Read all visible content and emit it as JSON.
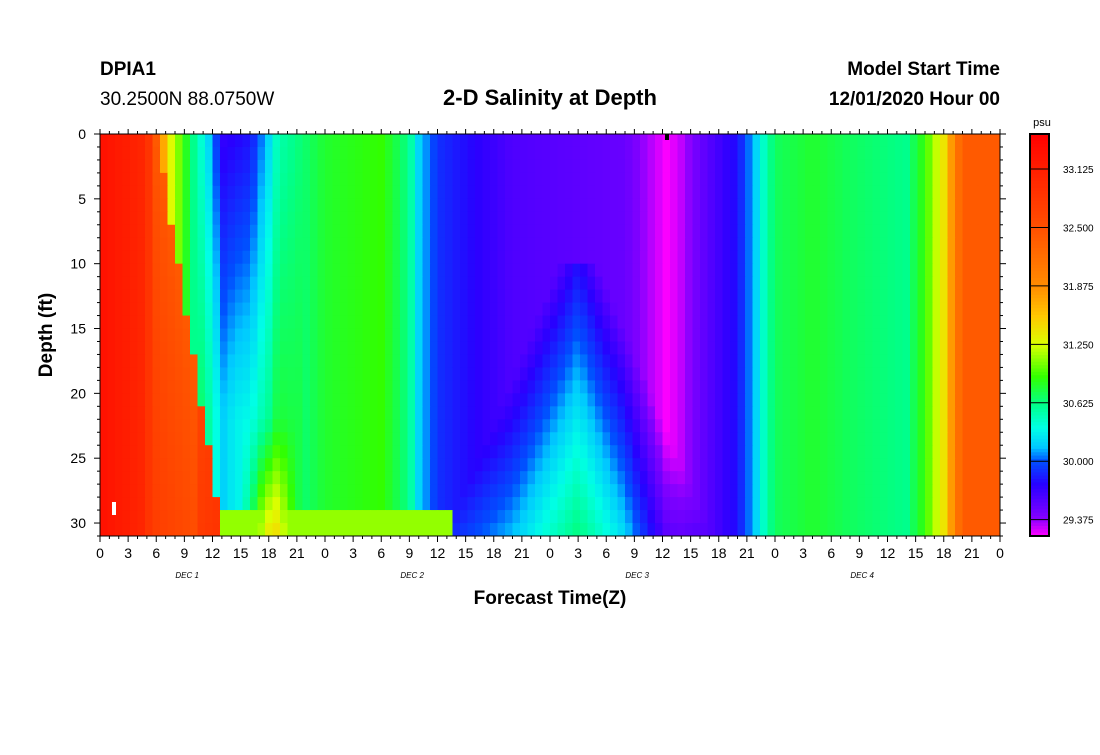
{
  "header": {
    "station": "DPIA1",
    "coords": "30.2500N 88.0750W",
    "title": "2-D Salinity at Depth",
    "start_label": "Model Start Time",
    "start_value": "12/01/2020 Hour 00"
  },
  "chart_data": {
    "type": "heatmap",
    "title": "2-D Salinity at Depth",
    "xlabel": "Forecast Time(Z)",
    "ylabel": "Depth (ft)",
    "x_range_hours": [
      0,
      96
    ],
    "ylim": [
      0,
      31
    ],
    "y_ticks": [
      "0",
      "5",
      "10",
      "15",
      "20",
      "25",
      "30"
    ],
    "x_tick_labels": [
      "0",
      "3",
      "6",
      "9",
      "12",
      "15",
      "18",
      "21",
      "0",
      "3",
      "6",
      "9",
      "12",
      "15",
      "18",
      "21",
      "0",
      "3",
      "6",
      "9",
      "12",
      "15",
      "18",
      "21",
      "0",
      "3",
      "6",
      "9",
      "12",
      "15",
      "18",
      "21",
      "0"
    ],
    "day_labels": [
      "DEC 1",
      "DEC 2",
      "DEC 3",
      "DEC 4"
    ],
    "colorbar": {
      "unit": "psu",
      "ticks": [
        "33.125",
        "32.500",
        "31.875",
        "31.250",
        "30.625",
        "30.000",
        "29.375"
      ],
      "min": 29.2,
      "max": 33.5
    },
    "surface_profile": [
      {
        "h": 0,
        "v": 33.3
      },
      {
        "h": 5,
        "v": 33.0
      },
      {
        "h": 6.5,
        "v": 31.9
      },
      {
        "h": 7.5,
        "v": 31.3
      },
      {
        "h": 10,
        "v": 30.6
      },
      {
        "h": 12,
        "v": 30.1
      },
      {
        "h": 13,
        "v": 29.7
      },
      {
        "h": 16,
        "v": 29.8
      },
      {
        "h": 18,
        "v": 30.2
      },
      {
        "h": 19,
        "v": 30.5
      },
      {
        "h": 24,
        "v": 30.8
      },
      {
        "h": 30,
        "v": 30.9
      },
      {
        "h": 33,
        "v": 30.6
      },
      {
        "h": 34,
        "v": 30.2
      },
      {
        "h": 36,
        "v": 29.9
      },
      {
        "h": 44,
        "v": 29.6
      },
      {
        "h": 56,
        "v": 29.5
      },
      {
        "h": 59,
        "v": 29.3
      },
      {
        "h": 60.5,
        "v": 29.2
      },
      {
        "h": 62,
        "v": 29.3
      },
      {
        "h": 64,
        "v": 29.5
      },
      {
        "h": 68,
        "v": 29.8
      },
      {
        "h": 70,
        "v": 30.2
      },
      {
        "h": 71,
        "v": 30.5
      },
      {
        "h": 72,
        "v": 30.7
      },
      {
        "h": 76,
        "v": 30.8
      },
      {
        "h": 80,
        "v": 30.7
      },
      {
        "h": 86,
        "v": 30.6
      },
      {
        "h": 88,
        "v": 30.9
      },
      {
        "h": 90,
        "v": 31.4
      },
      {
        "h": 91,
        "v": 31.9
      },
      {
        "h": 92,
        "v": 32.4
      },
      {
        "h": 96,
        "v": 32.4
      }
    ]
  }
}
